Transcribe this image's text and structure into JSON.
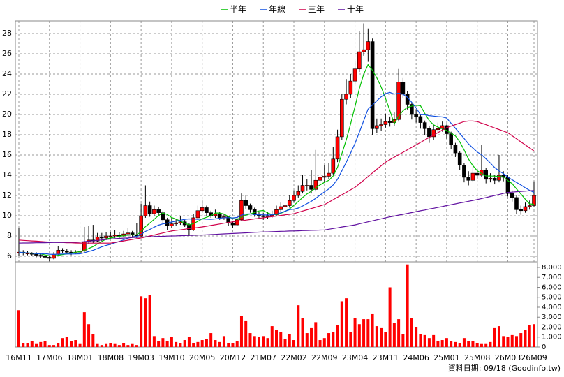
{
  "chart_data": {
    "type": "candlestick",
    "categories": [
      "16M11",
      null,
      null,
      null,
      null,
      null,
      null,
      "17M06",
      null,
      null,
      null,
      null,
      null,
      null,
      "18M01",
      null,
      null,
      null,
      null,
      null,
      null,
      "18M08",
      null,
      null,
      null,
      null,
      null,
      null,
      "19M03",
      null,
      null,
      null,
      null,
      null,
      null,
      "19M10",
      null,
      null,
      null,
      null,
      null,
      null,
      "20M05",
      null,
      null,
      null,
      null,
      null,
      null,
      "20M12",
      null,
      null,
      null,
      null,
      null,
      null,
      "21M07",
      null,
      null,
      null,
      null,
      null,
      null,
      "22M02",
      null,
      null,
      null,
      null,
      null,
      null,
      "22M09",
      null,
      null,
      null,
      null,
      null,
      null,
      "23M04",
      null,
      null,
      null,
      null,
      null,
      null,
      "23M11",
      null,
      null,
      null,
      null,
      null,
      null,
      "24M06",
      null,
      null,
      null,
      null,
      null,
      null,
      "25M01",
      null,
      null,
      null,
      null,
      null,
      null,
      "25M08",
      null,
      null,
      null,
      null,
      null,
      null,
      "26M03",
      null,
      null,
      null,
      null,
      null,
      "26M09"
    ],
    "open": [
      6.3,
      6.4,
      6.3,
      6.3,
      6.2,
      6.1,
      6.0,
      5.9,
      5.8,
      6.2,
      6.6,
      6.5,
      6.4,
      6.3,
      6.4,
      6.5,
      7.4,
      7.6,
      7.5,
      7.9,
      7.8,
      8.0,
      8.0,
      8.1,
      8.0,
      8.2,
      8.3,
      8.1,
      8.0,
      10.0,
      11.0,
      10.2,
      10.6,
      10.3,
      9.6,
      9.0,
      9.2,
      9.3,
      9.4,
      9.1,
      8.6,
      9.8,
      10.5,
      10.8,
      10.3,
      10.0,
      10.2,
      9.8,
      9.9,
      9.3,
      9.1,
      9.6,
      11.5,
      11.0,
      10.6,
      10.1,
      10.0,
      9.9,
      10.0,
      10.1,
      10.6,
      10.9,
      11.0,
      11.5,
      12.0,
      12.4,
      13.0,
      13.0,
      12.6,
      13.5,
      13.8,
      13.9,
      14.2,
      15.6,
      17.8,
      21.5,
      22.0,
      23.3,
      24.5,
      26.2,
      26.4,
      27.2,
      18.6,
      18.9,
      19.0,
      19.3,
      19.2,
      19.5,
      23.2,
      22.0,
      21.0,
      20.0,
      19.8,
      19.2,
      18.6,
      17.8,
      18.5,
      18.6,
      18.9,
      18.1,
      17.0,
      16.2,
      15.0,
      13.8,
      13.5,
      14.2,
      14.0,
      14.5,
      13.6,
      13.7,
      13.5,
      14.0,
      13.8,
      12.2,
      11.8,
      10.6,
      10.5,
      10.9,
      11.0
    ],
    "high": [
      8.8,
      6.6,
      6.5,
      6.4,
      6.4,
      6.3,
      6.2,
      6.1,
      6.4,
      7.0,
      6.8,
      6.7,
      6.6,
      6.6,
      6.8,
      8.9,
      9.0,
      9.1,
      8.3,
      8.3,
      8.4,
      8.4,
      8.6,
      8.4,
      8.5,
      8.8,
      8.5,
      9.3,
      11.2,
      13.0,
      11.4,
      11.0,
      10.9,
      10.5,
      9.8,
      9.8,
      9.7,
      10.0,
      9.6,
      9.3,
      10.2,
      11.0,
      11.6,
      11.0,
      10.5,
      10.6,
      10.4,
      10.2,
      10.0,
      9.5,
      10.0,
      12.2,
      12.0,
      11.2,
      10.8,
      10.4,
      10.3,
      10.4,
      10.5,
      11.0,
      11.3,
      11.4,
      12.0,
      12.5,
      13.0,
      14.0,
      13.6,
      14.5,
      16.5,
      14.5,
      15.0,
      15.2,
      16.8,
      18.5,
      22.0,
      23.5,
      24.0,
      25.3,
      28.2,
      29.0,
      28.5,
      27.5,
      19.6,
      19.6,
      20.0,
      19.8,
      20.2,
      24.5,
      23.6,
      22.3,
      21.2,
      20.5,
      20.0,
      19.4,
      18.9,
      19.0,
      19.2,
      19.3,
      19.0,
      18.3,
      17.2,
      16.4,
      15.2,
      14.4,
      14.8,
      14.6,
      17.0,
      14.7,
      14.2,
      14.0,
      16.0,
      14.4,
      14.0,
      12.5,
      12.0,
      11.0,
      11.3,
      11.5,
      13.4
    ],
    "low": [
      6.0,
      6.1,
      6.1,
      6.0,
      5.9,
      5.8,
      5.7,
      5.5,
      5.7,
      6.1,
      6.3,
      6.2,
      6.1,
      6.2,
      6.3,
      6.4,
      7.2,
      7.3,
      7.4,
      7.5,
      7.6,
      7.7,
      7.8,
      7.8,
      7.9,
      8.0,
      7.9,
      7.8,
      7.9,
      9.8,
      9.9,
      10.0,
      10.0,
      9.3,
      8.6,
      8.8,
      9.0,
      9.1,
      8.9,
      8.0,
      8.5,
      9.6,
      10.3,
      10.0,
      9.8,
      9.8,
      9.6,
      9.6,
      9.0,
      8.8,
      9.0,
      9.5,
      10.7,
      10.3,
      9.9,
      9.7,
      9.6,
      9.7,
      9.8,
      10.0,
      10.4,
      10.6,
      10.8,
      11.3,
      11.8,
      12.2,
      12.5,
      12.2,
      12.4,
      13.2,
      13.3,
      13.6,
      14.0,
      15.3,
      17.5,
      21.0,
      21.6,
      23.0,
      24.2,
      25.8,
      25.2,
      18.0,
      18.2,
      18.4,
      18.7,
      18.8,
      18.9,
      19.3,
      21.6,
      20.5,
      19.5,
      19.2,
      18.6,
      18.0,
      17.2,
      17.5,
      18.1,
      18.3,
      17.6,
      16.6,
      15.8,
      14.5,
      13.3,
      13.0,
      13.3,
      13.6,
      13.8,
      13.2,
      13.3,
      13.1,
      13.3,
      13.4,
      11.9,
      11.4,
      10.2,
      10.1,
      10.3,
      10.6,
      10.9
    ],
    "close": [
      6.4,
      6.3,
      6.3,
      6.2,
      6.1,
      6.0,
      5.9,
      5.8,
      6.2,
      6.6,
      6.5,
      6.4,
      6.3,
      6.4,
      6.5,
      7.4,
      7.6,
      7.5,
      7.9,
      7.8,
      8.0,
      8.0,
      8.1,
      8.0,
      8.2,
      8.3,
      8.1,
      8.0,
      10.0,
      11.0,
      10.2,
      10.6,
      10.3,
      9.6,
      9.0,
      9.2,
      9.3,
      9.4,
      9.1,
      8.6,
      9.8,
      10.5,
      10.8,
      10.3,
      10.0,
      10.2,
      9.8,
      9.9,
      9.3,
      9.1,
      9.6,
      11.5,
      11.0,
      10.6,
      10.1,
      10.0,
      9.9,
      10.0,
      10.1,
      10.6,
      10.9,
      11.0,
      11.5,
      12.0,
      12.4,
      13.0,
      13.0,
      12.6,
      13.5,
      13.8,
      13.9,
      14.2,
      15.6,
      17.8,
      21.5,
      22.0,
      23.3,
      24.5,
      26.2,
      26.4,
      27.2,
      18.6,
      18.9,
      19.0,
      19.3,
      19.2,
      19.5,
      23.2,
      22.0,
      21.0,
      20.0,
      19.8,
      19.2,
      18.6,
      17.8,
      18.5,
      18.6,
      18.9,
      18.1,
      17.0,
      16.2,
      15.0,
      13.8,
      13.5,
      14.2,
      14.0,
      14.5,
      13.6,
      13.7,
      13.5,
      14.0,
      13.8,
      12.2,
      11.8,
      10.6,
      10.5,
      10.9,
      11.0,
      12.0
    ],
    "up_color": "#ff0000",
    "down_color": "#000000",
    "volume": [
      3700,
      400,
      400,
      600,
      300,
      500,
      600,
      200,
      200,
      400,
      900,
      1000,
      600,
      700,
      300,
      3500,
      2300,
      1300,
      300,
      200,
      300,
      400,
      300,
      200,
      400,
      200,
      300,
      200,
      5100,
      4900,
      5200,
      1100,
      600,
      900,
      600,
      1000,
      500,
      400,
      700,
      1000,
      400,
      500,
      700,
      800,
      1400,
      700,
      500,
      1100,
      400,
      400,
      600,
      3100,
      2600,
      1400,
      1100,
      1000,
      1100,
      900,
      2100,
      1700,
      1500,
      800,
      1300,
      700,
      4200,
      2900,
      1400,
      1900,
      2500,
      700,
      900,
      1400,
      1500,
      2200,
      4600,
      4900,
      1500,
      2900,
      2300,
      2800,
      2800,
      3300,
      2100,
      1900,
      1500,
      6000,
      2400,
      2800,
      1300,
      8300,
      2900,
      2000,
      1300,
      1200,
      900,
      1200,
      600,
      700,
      900,
      600,
      500,
      400,
      900,
      600,
      600,
      400,
      300,
      300,
      500,
      1900,
      2100,
      1100,
      1000,
      1200,
      1100,
      1400,
      1700,
      2200,
      2300
    ],
    "volume_color": "#ff0000",
    "series": [
      {
        "name": "半年",
        "color": "#00c000",
        "values": [
          6.4,
          6.35,
          6.33,
          6.3,
          6.26,
          6.22,
          6.13,
          6.05,
          6.03,
          6.1,
          6.17,
          6.23,
          6.3,
          6.4,
          6.45,
          6.58,
          6.77,
          6.95,
          7.22,
          7.45,
          7.7,
          7.8,
          7.88,
          7.97,
          8.02,
          8.1,
          8.12,
          8.12,
          8.43,
          8.93,
          9.27,
          9.65,
          10.02,
          10.28,
          10.12,
          9.82,
          9.67,
          9.47,
          9.27,
          9.1,
          9.23,
          9.45,
          9.7,
          9.85,
          10.0,
          10.27,
          10.27,
          10.17,
          9.92,
          9.72,
          9.65,
          9.87,
          10.07,
          10.18,
          10.32,
          10.47,
          10.52,
          10.27,
          10.12,
          10.12,
          10.25,
          10.42,
          10.68,
          11.02,
          11.4,
          11.8,
          12.15,
          12.42,
          12.75,
          13.05,
          13.3,
          13.5,
          13.93,
          14.8,
          16.13,
          17.5,
          19.07,
          20.78,
          22.55,
          23.98,
          24.93,
          24.37,
          23.63,
          22.72,
          21.57,
          20.37,
          19.08,
          19.85,
          20.37,
          20.7,
          20.82,
          20.92,
          20.87,
          20.1,
          19.4,
          18.98,
          18.75,
          18.6,
          18.42,
          18.15,
          17.88,
          17.3,
          16.5,
          15.6,
          14.95,
          14.45,
          14.17,
          13.93,
          13.92,
          13.92,
          13.88,
          13.85,
          13.47,
          13.17,
          12.65,
          12.15,
          11.63,
          11.17,
          11.13
        ]
      },
      {
        "name": "年線",
        "color": "#1050e0",
        "values": [
          6.4,
          6.35,
          6.33,
          6.3,
          6.26,
          6.22,
          6.27,
          6.2,
          6.18,
          6.2,
          6.22,
          6.23,
          6.22,
          6.23,
          6.24,
          6.34,
          6.47,
          6.59,
          6.76,
          6.93,
          7.08,
          7.19,
          7.33,
          7.46,
          7.62,
          7.78,
          7.91,
          7.96,
          8.16,
          8.45,
          8.65,
          8.88,
          9.07,
          9.2,
          9.28,
          9.38,
          9.47,
          9.56,
          9.65,
          9.69,
          9.68,
          9.64,
          9.69,
          9.66,
          9.64,
          9.69,
          9.75,
          9.81,
          9.81,
          9.79,
          9.83,
          10.07,
          10.17,
          10.18,
          10.12,
          10.1,
          10.09,
          10.07,
          10.1,
          10.15,
          10.29,
          10.45,
          10.6,
          10.65,
          10.76,
          10.96,
          11.2,
          11.42,
          11.72,
          12.04,
          12.35,
          12.65,
          13.04,
          13.61,
          14.44,
          15.28,
          16.19,
          17.14,
          18.24,
          19.39,
          20.53,
          20.94,
          21.35,
          21.75,
          22.06,
          22.18,
          22.01,
          22.11,
          22.0,
          21.71,
          21.2,
          20.65,
          19.98,
          19.98,
          19.89,
          19.84,
          19.79,
          19.76,
          19.65,
          19.13,
          18.64,
          18.14,
          17.63,
          17.1,
          16.69,
          16.3,
          16.03,
          15.62,
          15.21,
          14.76,
          14.42,
          14.15,
          13.82,
          13.55,
          13.29,
          13.04,
          12.76,
          12.51,
          12.3
        ]
      },
      {
        "name": "三年",
        "color": "#d0004a",
        "values": [
          7.6,
          7.57,
          7.54,
          7.51,
          7.49,
          7.46,
          7.43,
          7.4,
          7.39,
          7.37,
          7.36,
          7.34,
          7.33,
          7.31,
          7.3,
          7.3,
          7.3,
          7.3,
          7.3,
          7.3,
          7.3,
          7.3,
          7.37,
          7.44,
          7.51,
          7.59,
          7.66,
          7.73,
          7.8,
          7.9,
          8.0,
          8.1,
          8.2,
          8.3,
          8.4,
          8.5,
          8.56,
          8.61,
          8.67,
          8.73,
          8.79,
          8.84,
          8.9,
          8.97,
          9.04,
          9.11,
          9.19,
          9.26,
          9.33,
          9.4,
          9.46,
          9.51,
          9.57,
          9.63,
          9.69,
          9.74,
          9.8,
          9.86,
          9.91,
          9.97,
          10.03,
          10.09,
          10.14,
          10.2,
          10.33,
          10.46,
          10.59,
          10.71,
          10.84,
          10.97,
          11.1,
          11.34,
          11.59,
          11.83,
          12.07,
          12.31,
          12.56,
          12.8,
          13.16,
          13.51,
          13.87,
          14.23,
          14.59,
          14.94,
          15.3,
          15.54,
          15.79,
          16.03,
          16.27,
          16.51,
          16.76,
          17.0,
          17.24,
          17.49,
          17.73,
          17.97,
          18.21,
          18.46,
          18.7,
          18.85,
          19.0,
          19.15,
          19.3,
          19.35,
          19.35,
          19.3,
          19.14,
          18.99,
          18.83,
          18.67,
          18.51,
          18.36,
          18.2,
          17.9,
          17.6,
          17.3,
          17.0,
          16.7,
          16.4
        ]
      },
      {
        "name": "十年",
        "color": "#6010a0",
        "values": [
          7.3,
          7.31,
          7.31,
          7.32,
          7.33,
          7.34,
          7.34,
          7.35,
          7.36,
          7.36,
          7.37,
          7.38,
          7.39,
          7.39,
          7.4,
          7.44,
          7.49,
          7.53,
          7.57,
          7.61,
          7.66,
          7.7,
          7.73,
          7.76,
          7.79,
          7.81,
          7.84,
          7.87,
          7.9,
          7.91,
          7.93,
          7.94,
          7.96,
          7.97,
          7.99,
          8.0,
          8.01,
          8.03,
          8.04,
          8.06,
          8.07,
          8.09,
          8.1,
          8.12,
          8.14,
          8.16,
          8.19,
          8.21,
          8.23,
          8.25,
          8.27,
          8.29,
          8.31,
          8.34,
          8.36,
          8.38,
          8.4,
          8.41,
          8.43,
          8.44,
          8.46,
          8.47,
          8.49,
          8.5,
          8.51,
          8.53,
          8.54,
          8.56,
          8.57,
          8.59,
          8.6,
          8.67,
          8.74,
          8.81,
          8.89,
          8.96,
          9.03,
          9.1,
          9.2,
          9.3,
          9.4,
          9.5,
          9.6,
          9.7,
          9.8,
          9.89,
          9.97,
          10.06,
          10.14,
          10.23,
          10.31,
          10.4,
          10.49,
          10.57,
          10.66,
          10.74,
          10.83,
          10.91,
          11.0,
          11.09,
          11.17,
          11.26,
          11.34,
          11.43,
          11.51,
          11.6,
          11.7,
          11.8,
          11.9,
          12.0,
          12.1,
          12.2,
          12.3,
          12.33,
          12.37,
          12.4,
          12.43,
          12.47,
          12.5
        ]
      }
    ],
    "ylim": [
      5.45,
      29.24
    ],
    "yticks": [
      6,
      8,
      10,
      12,
      14,
      16,
      18,
      20,
      22,
      24,
      26,
      28
    ],
    "y2lim": [
      0,
      8560
    ],
    "y2ticks": [
      0,
      {
        "value": 1000,
        "label": "1,000"
      },
      {
        "value": 2000,
        "label": "2,000"
      },
      {
        "value": 3000,
        "label": "3,000"
      },
      {
        "value": 4000,
        "label": "4,000"
      },
      {
        "value": 5000,
        "label": "5,000"
      },
      {
        "value": 6000,
        "label": "6,000"
      },
      {
        "value": 7000,
        "label": "7,000"
      },
      {
        "value": 8000,
        "label": "8,000"
      }
    ],
    "grid": true,
    "legend": "top",
    "source": "資料日期: 09/18 (Goodinfo.tw)"
  }
}
